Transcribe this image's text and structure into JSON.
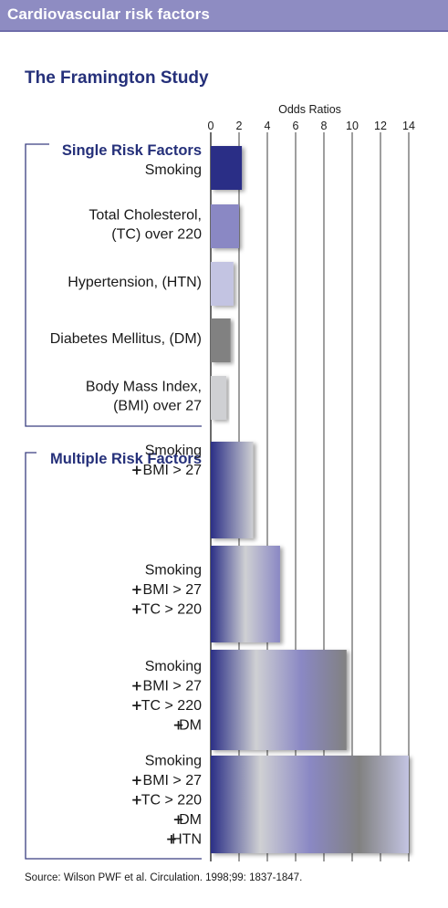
{
  "header": {
    "title": "Cardiovascular risk factors"
  },
  "subtitle": "The Framington Study",
  "source": "Source: Wilson PWF et al. Circulation. 1998;99: 1837-1847.",
  "plus_symbol": "+",
  "chart_data": {
    "type": "bar",
    "orientation": "horizontal",
    "title": "The Framington Study",
    "xlabel": "Odds Ratios",
    "xlim": [
      0,
      14
    ],
    "xticks": [
      0,
      2,
      4,
      6,
      8,
      10,
      12,
      14
    ],
    "grid": true,
    "groups": [
      {
        "name": "Single Risk Factors",
        "bars": [
          {
            "label_lines": [
              "Smoking"
            ],
            "plus_prefixed": [
              false
            ],
            "value": 2.2,
            "color": "#2b2f86"
          },
          {
            "label_lines": [
              "Total Cholesterol,",
              "(TC) over 220"
            ],
            "plus_prefixed": [
              false,
              false
            ],
            "value": 2.0,
            "color": "#8a88c4"
          },
          {
            "label_lines": [
              "Hypertension, (HTN)"
            ],
            "plus_prefixed": [
              false
            ],
            "value": 1.6,
            "color": "#c3c4e2"
          },
          {
            "label_lines": [
              "Diabetes Mellitus, (DM)"
            ],
            "plus_prefixed": [
              false
            ],
            "value": 1.4,
            "color": "#818181"
          },
          {
            "label_lines": [
              "Body Mass Index,",
              "(BMI) over 27"
            ],
            "plus_prefixed": [
              false,
              false
            ],
            "value": 1.1,
            "color": "#cfd0d3"
          }
        ]
      },
      {
        "name": "Multiple Risk Factors",
        "bars": [
          {
            "label_lines": [
              "Smoking",
              "BMI > 27"
            ],
            "plus_prefixed": [
              false,
              true
            ],
            "value": 3.0
          },
          {
            "label_lines": [
              "Smoking",
              "BMI > 27",
              "TC > 220"
            ],
            "plus_prefixed": [
              false,
              true,
              true
            ],
            "value": 4.9
          },
          {
            "label_lines": [
              "Smoking",
              "BMI > 27",
              "TC > 220",
              "DM"
            ],
            "plus_prefixed": [
              false,
              true,
              true,
              true
            ],
            "value": 9.6
          },
          {
            "label_lines": [
              "Smoking",
              "BMI > 27",
              "TC > 220",
              "DM",
              "HTN"
            ],
            "plus_prefixed": [
              false,
              true,
              true,
              true,
              true
            ],
            "value": 14.0
          }
        ]
      }
    ]
  },
  "colors": {
    "header_band": "#8e8cc2",
    "title_blue": "#25307a",
    "bracket": "#3a3f80",
    "grid": "#2a2a2a",
    "segment_colors": [
      "#2b2f86",
      "#cfd0d3",
      "#8a88c4",
      "#818181",
      "#c3c4e2"
    ]
  }
}
